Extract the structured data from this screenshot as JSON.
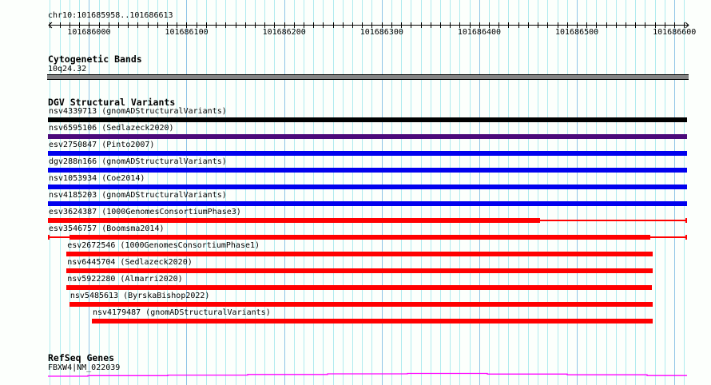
{
  "view": {
    "locus": "chr10:101685958..101686613",
    "start": 101685958,
    "end": 101686613,
    "ruler_labels": [
      "101686000",
      "101686100",
      "101686200",
      "101686300",
      "101686400",
      "101686500",
      "101686600"
    ]
  },
  "tracks": {
    "cytobands": {
      "title": "Cytogenetic Bands",
      "band": "10q24.32",
      "color": "#858585"
    },
    "dgv": {
      "title": "DGV Structural Variants",
      "features": [
        {
          "label": "nsv4339713 (gnomADStructuralVariants)",
          "color": "#000000",
          "start": 101685958,
          "end": 101686613
        },
        {
          "label": "nsv6595106 (Sedlazeck2020)",
          "color": "#4b0a7a",
          "start": 101685958,
          "end": 101686613
        },
        {
          "label": "esv2750847 (Pinto2007)",
          "color": "#0000ee",
          "start": 101685958,
          "end": 101686613
        },
        {
          "label": "dgv288n166 (gnomADStructuralVariants)",
          "color": "#0000ee",
          "start": 101685958,
          "end": 101686613
        },
        {
          "label": "nsv1053934 (Coe2014)",
          "color": "#0000ee",
          "start": 101685958,
          "end": 101686613
        },
        {
          "label": "nsv4185203 (gnomADStructuralVariants)",
          "color": "#0000ee",
          "start": 101685958,
          "end": 101686613
        },
        {
          "label": "esv3624387 (1000GenomesConsortiumPhase3)",
          "color": "#ff0000",
          "start": 101685958,
          "end": 101686613,
          "thick_start": 101685958,
          "thick_end": 101686462
        },
        {
          "label": "esv3546757 (Boomsma2014)",
          "color": "#ff0000",
          "start": 101685958,
          "end": 101686613,
          "thick_start": 101685980,
          "thick_end": 101686575
        },
        {
          "label": "esv2672546 (1000GenomesConsortiumPhase1)",
          "color": "#ff0000",
          "start": 101685977,
          "end": 101686578
        },
        {
          "label": "nsv6445704 (Sedlazeck2020)",
          "color": "#ff0000",
          "start": 101685977,
          "end": 101686578
        },
        {
          "label": "nsv5922280 (Almarri2020)",
          "color": "#ff0000",
          "start": 101685977,
          "end": 101686577
        },
        {
          "label": "nsv5485613 (ByrskaBishop2022)",
          "color": "#ff0000",
          "start": 101685980,
          "end": 101686578
        },
        {
          "label": "nsv4179487 (gnomADStructuralVariants)",
          "color": "#ff0000",
          "start": 101686003,
          "end": 101686578
        }
      ]
    },
    "refseq": {
      "title": "RefSeq Genes",
      "gene": "FBXW4|NM_022039",
      "color": "#ff00ff"
    }
  }
}
